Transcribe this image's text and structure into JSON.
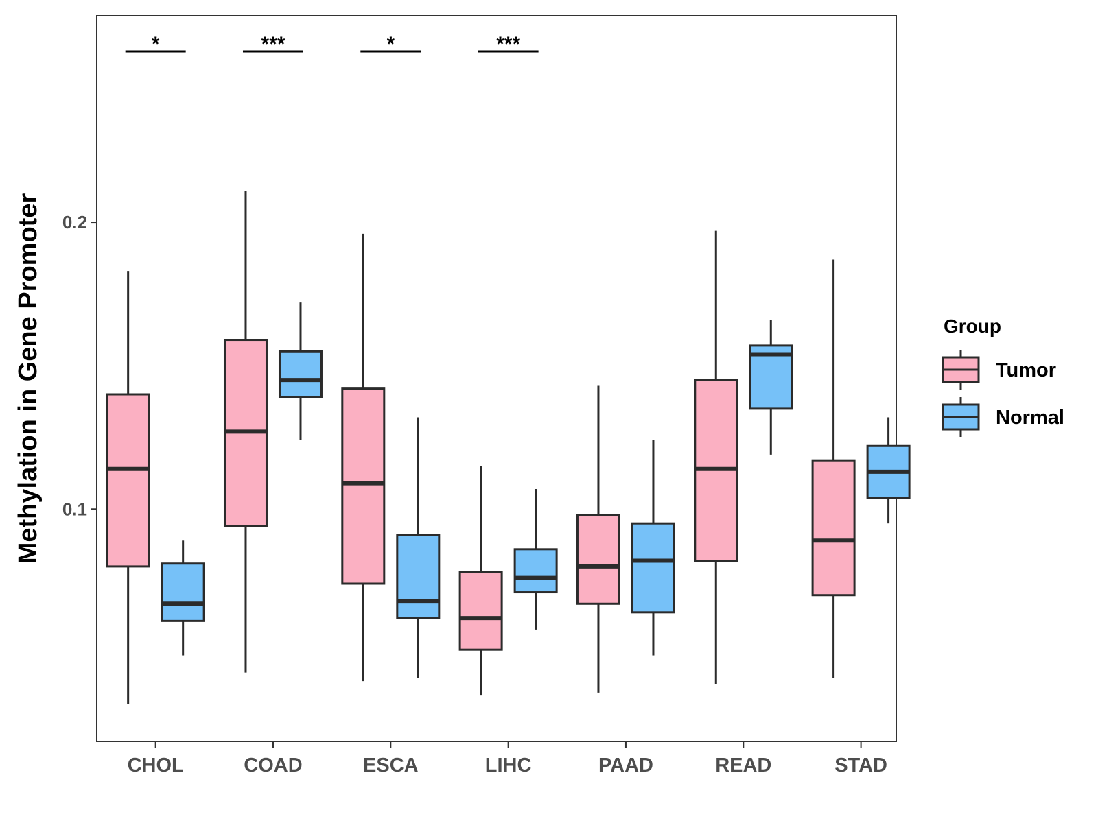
{
  "chart_data": {
    "type": "boxplot",
    "title": "",
    "xlabel": "",
    "ylabel": "Methylation in Gene Promoter",
    "ylim": [
      0.019,
      0.272
    ],
    "yticks": [
      0.1,
      0.2
    ],
    "ytick_labels": [
      "0.1",
      "0.2"
    ],
    "categories": [
      "CHOL",
      "COAD",
      "ESCA",
      "LIHC",
      "PAAD",
      "READ",
      "STAD"
    ],
    "legend": {
      "title": "Group",
      "position": "right",
      "entries": [
        {
          "name": "Tumor",
          "color": "#FBB0C2"
        },
        {
          "name": "Normal",
          "color": "#76C1F8"
        }
      ]
    },
    "series": [
      {
        "name": "Tumor",
        "color": "#FBB0C2",
        "boxes": [
          {
            "category": "CHOL",
            "whisker_low": 0.032,
            "q1": 0.08,
            "median": 0.114,
            "q3": 0.14,
            "whisker_high": 0.183
          },
          {
            "category": "COAD",
            "whisker_low": 0.043,
            "q1": 0.094,
            "median": 0.127,
            "q3": 0.159,
            "whisker_high": 0.211
          },
          {
            "category": "ESCA",
            "whisker_low": 0.04,
            "q1": 0.074,
            "median": 0.109,
            "q3": 0.142,
            "whisker_high": 0.196
          },
          {
            "category": "LIHC",
            "whisker_low": 0.035,
            "q1": 0.051,
            "median": 0.062,
            "q3": 0.078,
            "whisker_high": 0.115
          },
          {
            "category": "PAAD",
            "whisker_low": 0.036,
            "q1": 0.067,
            "median": 0.08,
            "q3": 0.098,
            "whisker_high": 0.143
          },
          {
            "category": "READ",
            "whisker_low": 0.039,
            "q1": 0.082,
            "median": 0.114,
            "q3": 0.145,
            "whisker_high": 0.197
          },
          {
            "category": "STAD",
            "whisker_low": 0.041,
            "q1": 0.07,
            "median": 0.089,
            "q3": 0.117,
            "whisker_high": 0.187
          }
        ]
      },
      {
        "name": "Normal",
        "color": "#76C1F8",
        "boxes": [
          {
            "category": "CHOL",
            "whisker_low": 0.049,
            "q1": 0.061,
            "median": 0.067,
            "q3": 0.081,
            "whisker_high": 0.089
          },
          {
            "category": "COAD",
            "whisker_low": 0.124,
            "q1": 0.139,
            "median": 0.145,
            "q3": 0.155,
            "whisker_high": 0.172
          },
          {
            "category": "ESCA",
            "whisker_low": 0.041,
            "q1": 0.062,
            "median": 0.068,
            "q3": 0.091,
            "whisker_high": 0.132
          },
          {
            "category": "LIHC",
            "whisker_low": 0.058,
            "q1": 0.071,
            "median": 0.076,
            "q3": 0.086,
            "whisker_high": 0.107
          },
          {
            "category": "PAAD",
            "whisker_low": 0.049,
            "q1": 0.064,
            "median": 0.082,
            "q3": 0.095,
            "whisker_high": 0.124
          },
          {
            "category": "READ",
            "whisker_low": 0.119,
            "q1": 0.135,
            "median": 0.154,
            "q3": 0.157,
            "whisker_high": 0.166
          },
          {
            "category": "STAD",
            "whisker_low": 0.095,
            "q1": 0.104,
            "median": 0.113,
            "q3": 0.122,
            "whisker_high": 0.132
          }
        ]
      }
    ],
    "significance": [
      {
        "category": "CHOL",
        "label": "*"
      },
      {
        "category": "COAD",
        "label": "***"
      },
      {
        "category": "ESCA",
        "label": "*"
      },
      {
        "category": "LIHC",
        "label": "***"
      }
    ]
  }
}
